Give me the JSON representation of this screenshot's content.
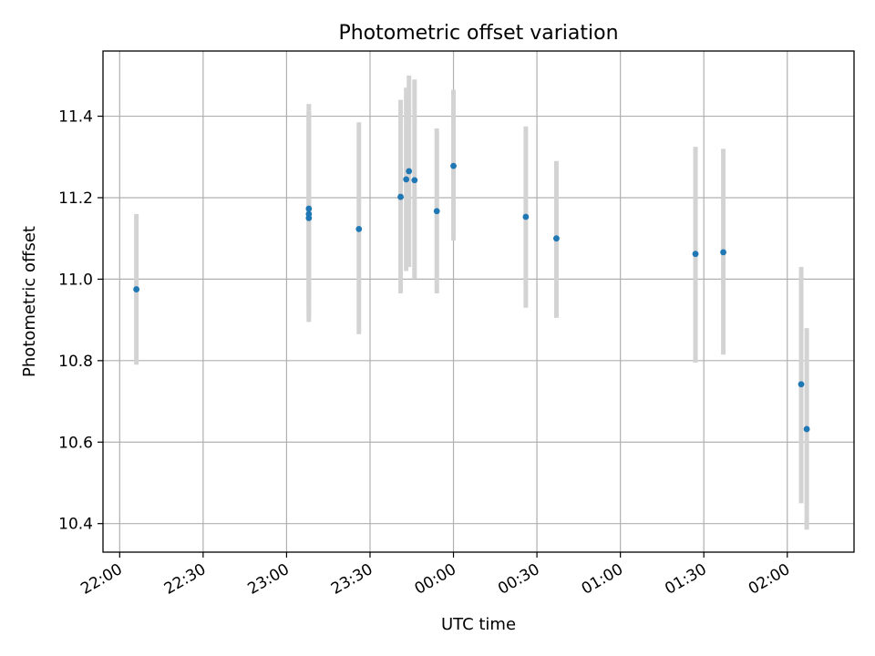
{
  "chart_data": {
    "type": "scatter",
    "title": "Photometric offset variation",
    "xlabel": "UTC time",
    "ylabel": "Photometric offset",
    "grid": true,
    "x_tick_labels": [
      "22:00",
      "22:30",
      "23:00",
      "23:30",
      "00:00",
      "00:30",
      "01:00",
      "01:30",
      "02:00"
    ],
    "y_tick_labels": [
      "10.4",
      "10.6",
      "10.8",
      "11.0",
      "11.2",
      "11.4"
    ],
    "y_ticks": [
      10.4,
      10.6,
      10.8,
      11.0,
      11.2,
      11.4
    ],
    "xlim": [
      "21:54",
      "02:24"
    ],
    "ylim": [
      10.33,
      11.56
    ],
    "colors": {
      "marker": "#1f77b4",
      "errorbar": "#d3d3d3"
    },
    "points": [
      {
        "time": "22:06",
        "y": 10.975,
        "ylow": 10.79,
        "yhigh": 11.16
      },
      {
        "time": "23:08",
        "y": 11.16,
        "ylow": 10.91,
        "yhigh": 11.43
      },
      {
        "time": "23:08",
        "y": 11.173,
        "ylow": 10.95,
        "yhigh": 11.41
      },
      {
        "time": "23:08",
        "y": 11.15,
        "ylow": 10.895,
        "yhigh": 11.41
      },
      {
        "time": "23:26",
        "y": 11.123,
        "ylow": 10.865,
        "yhigh": 11.385
      },
      {
        "time": "23:41",
        "y": 11.202,
        "ylow": 10.965,
        "yhigh": 11.44
      },
      {
        "time": "23:43",
        "y": 11.245,
        "ylow": 11.02,
        "yhigh": 11.47
      },
      {
        "time": "23:44",
        "y": 11.265,
        "ylow": 11.03,
        "yhigh": 11.5
      },
      {
        "time": "23:46",
        "y": 11.243,
        "ylow": 11.0,
        "yhigh": 11.49
      },
      {
        "time": "23:54",
        "y": 11.167,
        "ylow": 10.965,
        "yhigh": 11.37
      },
      {
        "time": "00:00",
        "y": 11.278,
        "ylow": 11.095,
        "yhigh": 11.465
      },
      {
        "time": "00:26",
        "y": 11.153,
        "ylow": 10.93,
        "yhigh": 11.375
      },
      {
        "time": "00:37",
        "y": 11.1,
        "ylow": 10.905,
        "yhigh": 11.29
      },
      {
        "time": "01:27",
        "y": 11.062,
        "ylow": 10.795,
        "yhigh": 11.325
      },
      {
        "time": "01:37",
        "y": 11.066,
        "ylow": 10.815,
        "yhigh": 11.32
      },
      {
        "time": "02:05",
        "y": 10.742,
        "ylow": 10.45,
        "yhigh": 11.03
      },
      {
        "time": "02:07",
        "y": 10.632,
        "ylow": 10.385,
        "yhigh": 10.88
      }
    ]
  }
}
